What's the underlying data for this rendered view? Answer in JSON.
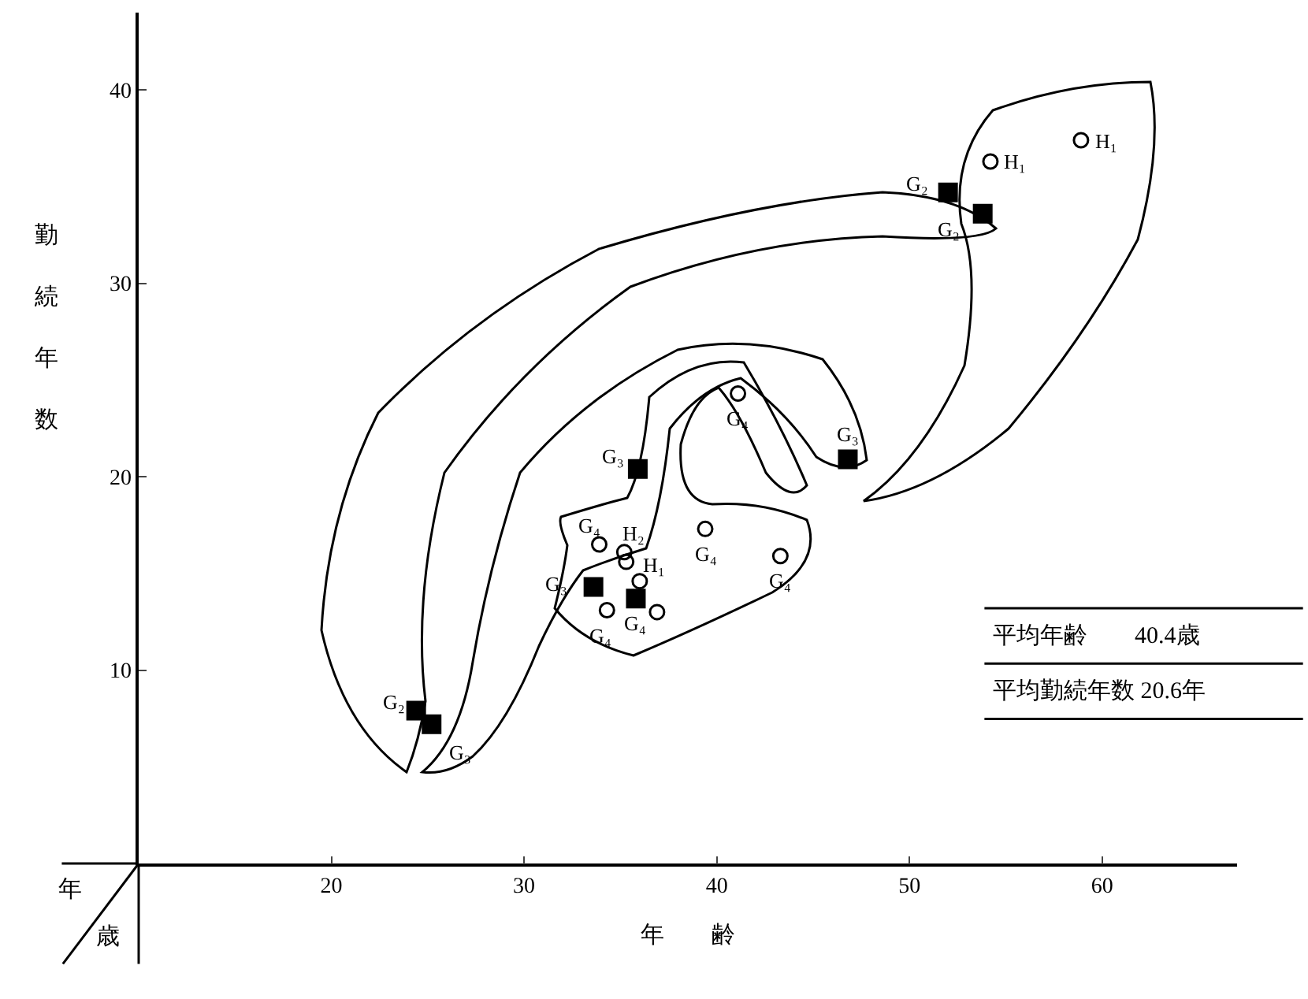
{
  "chart_data": {
    "type": "scatter",
    "xlabel": "年　　齢",
    "ylabel": "勤続年数",
    "xlim": [
      10,
      67
    ],
    "xticks": [
      20,
      30,
      40,
      50,
      60
    ],
    "ylim": [
      0,
      44
    ],
    "yticks": [
      10,
      20,
      30,
      40
    ],
    "series": [
      {
        "marker": "square",
        "color": "#000000",
        "x": [
          24.4,
          25.2,
          33.6,
          35.8,
          35.9,
          46.8,
          52,
          53.8
        ],
        "values": [
          7.9,
          7.2,
          14.3,
          13.7,
          20.4,
          20.9,
          34.7,
          33.6
        ]
      },
      {
        "marker": "circle",
        "color": "#000000",
        "x": [
          54.2,
          58.9,
          41.1,
          33.9,
          35.2,
          35.3,
          36,
          34.3,
          36.9,
          39.4,
          43.3
        ],
        "values": [
          36.3,
          37.4,
          24.3,
          16.5,
          16.1,
          15.6,
          14.6,
          13.1,
          13.0,
          17.3,
          15.9
        ]
      }
    ],
    "annotations": [
      "年",
      "歳",
      "平均年齢　　40.4歳",
      "平均勤続年数 20.6年",
      {
        "text": "G₂",
        "x": 24.4,
        "y": 7.9
      },
      {
        "text": "G₃",
        "x": 25.2,
        "y": 7.2
      },
      {
        "text": "G₃",
        "x": 33.6,
        "y": 14.3
      },
      {
        "text": "G₄",
        "x": 35.8,
        "y": 13.7
      },
      {
        "text": "G₃",
        "x": 35.9,
        "y": 20.4
      },
      {
        "text": "G₃",
        "x": 46.8,
        "y": 20.9
      },
      {
        "text": "G₂",
        "x": 52,
        "y": 34.7
      },
      {
        "text": "G₂",
        "x": 53.8,
        "y": 33.6
      },
      {
        "text": "H₁",
        "x": 54.2,
        "y": 36.3
      },
      {
        "text": "H₁",
        "x": 58.9,
        "y": 37.4
      },
      {
        "text": "G₄",
        "x": 41.1,
        "y": 24.3
      },
      {
        "text": "G₄",
        "x": 33.9,
        "y": 16.5
      },
      {
        "text": "H₂",
        "x": 35.2,
        "y": 16.1
      },
      {
        "text": "H₁",
        "x": 35.3,
        "y": 15.6
      },
      {
        "text": "G₄",
        "x": 34.3,
        "y": 13.1
      },
      {
        "text": "G₄",
        "x": 39.4,
        "y": 17.3
      },
      {
        "text": "G₄",
        "x": 43.3,
        "y": 15.9
      }
    ]
  }
}
